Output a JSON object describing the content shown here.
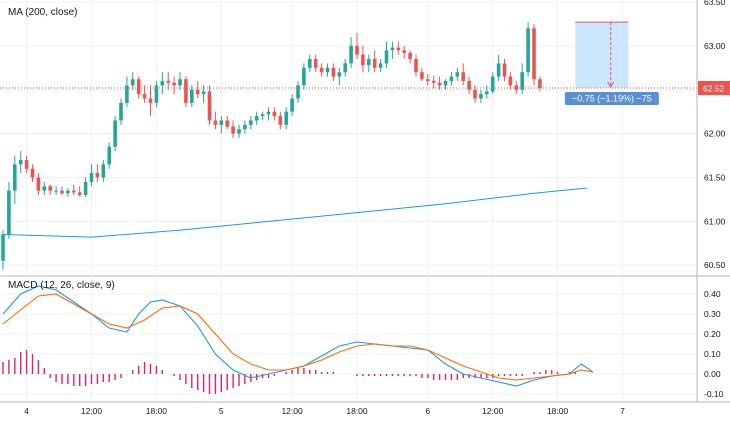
{
  "chart_data": [
    {
      "type": "candlestick",
      "title": "MA (200, close)",
      "ylim": [
        60.4,
        63.5
      ],
      "y_ticks": [
        "60.50",
        "61.00",
        "61.50",
        "62.00",
        "62.50",
        "63.00",
        "63.50"
      ],
      "y_tick_values": [
        60.5,
        61.0,
        61.5,
        62.0,
        62.5,
        63.0,
        63.5
      ],
      "x_ticks": [
        "4",
        "12:00",
        "18:00",
        "5",
        "12:00",
        "18:00",
        "6",
        "12:00",
        "18:00",
        "7"
      ],
      "x_tick_index": [
        4,
        15,
        26,
        37,
        49,
        60,
        72,
        83,
        94,
        105
      ],
      "last_price_label": "62.52",
      "last_price": 62.52,
      "colors": {
        "up": "#26a69a",
        "down": "#ef5350",
        "ma": "#2196f3",
        "last_price": "#ef5350"
      },
      "candles": [
        [
          60.55,
          60.9,
          60.45,
          60.85
        ],
        [
          60.85,
          61.45,
          60.8,
          61.35
        ],
        [
          61.35,
          61.75,
          61.2,
          61.65
        ],
        [
          61.65,
          61.8,
          61.55,
          61.7
        ],
        [
          61.7,
          61.75,
          61.55,
          61.6
        ],
        [
          61.6,
          61.65,
          61.45,
          61.5
        ],
        [
          61.5,
          61.55,
          61.3,
          61.35
        ],
        [
          61.35,
          61.45,
          61.3,
          61.4
        ],
        [
          61.4,
          61.42,
          61.3,
          61.35
        ],
        [
          61.35,
          61.4,
          61.3,
          61.35
        ],
        [
          61.35,
          61.4,
          61.3,
          61.32
        ],
        [
          61.32,
          61.38,
          61.28,
          61.35
        ],
        [
          61.35,
          61.42,
          61.3,
          61.33
        ],
        [
          61.33,
          61.4,
          61.28,
          61.3
        ],
        [
          61.3,
          61.5,
          61.28,
          61.45
        ],
        [
          61.45,
          61.65,
          61.4,
          61.55
        ],
        [
          61.55,
          61.65,
          61.45,
          61.5
        ],
        [
          61.5,
          61.7,
          61.45,
          61.65
        ],
        [
          61.65,
          61.9,
          61.6,
          61.85
        ],
        [
          61.85,
          62.2,
          61.8,
          62.15
        ],
        [
          62.15,
          62.4,
          62.1,
          62.35
        ],
        [
          62.35,
          62.65,
          62.3,
          62.55
        ],
        [
          62.55,
          62.7,
          62.5,
          62.62
        ],
        [
          62.62,
          62.65,
          62.4,
          62.45
        ],
        [
          62.45,
          62.55,
          62.35,
          62.4
        ],
        [
          62.4,
          62.55,
          62.2,
          62.35
        ],
        [
          62.35,
          62.6,
          62.3,
          62.55
        ],
        [
          62.55,
          62.7,
          62.45,
          62.6
        ],
        [
          62.6,
          62.7,
          62.5,
          62.58
        ],
        [
          62.58,
          62.65,
          62.45,
          62.55
        ],
        [
          62.55,
          62.7,
          62.5,
          62.62
        ],
        [
          62.62,
          62.65,
          62.3,
          62.35
        ],
        [
          62.35,
          62.55,
          62.3,
          62.5
        ],
        [
          62.5,
          62.6,
          62.4,
          62.45
        ],
        [
          62.45,
          62.55,
          62.35,
          62.48
        ],
        [
          62.48,
          62.55,
          62.1,
          62.15
        ],
        [
          62.15,
          62.25,
          62.05,
          62.1
        ],
        [
          62.1,
          62.2,
          62.0,
          62.15
        ],
        [
          62.15,
          62.2,
          62.05,
          62.08
        ],
        [
          62.08,
          62.15,
          61.95,
          62.0
        ],
        [
          62.0,
          62.1,
          61.95,
          62.05
        ],
        [
          62.05,
          62.15,
          62.0,
          62.1
        ],
        [
          62.1,
          62.2,
          62.05,
          62.15
        ],
        [
          62.15,
          62.25,
          62.1,
          62.2
        ],
        [
          62.2,
          62.25,
          62.15,
          62.22
        ],
        [
          62.22,
          62.3,
          62.15,
          62.25
        ],
        [
          62.25,
          62.3,
          62.15,
          62.2
        ],
        [
          62.2,
          62.25,
          62.05,
          62.1
        ],
        [
          62.1,
          62.3,
          62.05,
          62.25
        ],
        [
          62.25,
          62.45,
          62.2,
          62.4
        ],
        [
          62.4,
          62.6,
          62.35,
          62.55
        ],
        [
          62.55,
          62.8,
          62.5,
          62.75
        ],
        [
          62.75,
          62.9,
          62.7,
          62.85
        ],
        [
          62.85,
          62.9,
          62.7,
          62.75
        ],
        [
          62.75,
          62.8,
          62.65,
          62.7
        ],
        [
          62.7,
          62.8,
          62.65,
          62.75
        ],
        [
          62.75,
          62.8,
          62.6,
          62.65
        ],
        [
          62.65,
          62.75,
          62.55,
          62.7
        ],
        [
          62.7,
          62.85,
          62.65,
          62.8
        ],
        [
          62.8,
          63.1,
          62.75,
          63.0
        ],
        [
          63.0,
          63.15,
          62.85,
          62.9
        ],
        [
          62.9,
          63.0,
          62.7,
          62.78
        ],
        [
          62.78,
          62.9,
          62.7,
          62.85
        ],
        [
          62.85,
          62.95,
          62.7,
          62.75
        ],
        [
          62.75,
          62.85,
          62.7,
          62.8
        ],
        [
          62.8,
          63.05,
          62.75,
          62.95
        ],
        [
          62.95,
          63.05,
          62.85,
          62.98
        ],
        [
          62.98,
          63.05,
          62.9,
          62.95
        ],
        [
          62.95,
          63.0,
          62.85,
          62.92
        ],
        [
          62.92,
          62.95,
          62.8,
          62.85
        ],
        [
          62.85,
          62.9,
          62.65,
          62.7
        ],
        [
          62.7,
          62.75,
          62.6,
          62.62
        ],
        [
          62.62,
          62.68,
          62.55,
          62.6
        ],
        [
          62.6,
          62.66,
          62.52,
          62.58
        ],
        [
          62.58,
          62.65,
          62.5,
          62.55
        ],
        [
          62.55,
          62.62,
          62.5,
          62.6
        ],
        [
          62.6,
          62.7,
          62.55,
          62.65
        ],
        [
          62.65,
          62.75,
          62.6,
          62.7
        ],
        [
          62.7,
          62.8,
          62.55,
          62.6
        ],
        [
          62.6,
          62.65,
          62.45,
          62.5
        ],
        [
          62.5,
          62.55,
          62.35,
          62.4
        ],
        [
          62.4,
          62.5,
          62.35,
          62.45
        ],
        [
          62.45,
          62.55,
          62.4,
          62.48
        ],
        [
          62.48,
          62.7,
          62.45,
          62.65
        ],
        [
          62.65,
          62.9,
          62.6,
          62.8
        ],
        [
          62.8,
          62.85,
          62.6,
          62.65
        ],
        [
          62.65,
          62.7,
          62.5,
          62.55
        ],
        [
          62.55,
          62.6,
          62.45,
          62.5
        ],
        [
          62.5,
          62.8,
          62.45,
          62.7
        ],
        [
          62.7,
          63.27,
          62.65,
          63.2
        ],
        [
          63.2,
          63.25,
          62.55,
          62.62
        ],
        [
          62.62,
          62.65,
          62.48,
          62.52
        ]
      ],
      "ma_points": [
        [
          0,
          60.85
        ],
        [
          15,
          60.82
        ],
        [
          30,
          60.9
        ],
        [
          45,
          61.0
        ],
        [
          60,
          61.1
        ],
        [
          75,
          61.2
        ],
        [
          90,
          61.32
        ],
        [
          99,
          61.38
        ]
      ],
      "measure": {
        "label": "−0.75 (−1.19%) −75",
        "from_index": 97,
        "to_index": 106,
        "top": 63.27,
        "bottom": 62.52,
        "fill": "#bbdefb",
        "border": "#ef5350",
        "label_bg": "#5a8fd6"
      }
    },
    {
      "type": "line",
      "title": "MACD (12, 26, close, 9)",
      "ylim": [
        -0.13,
        0.48
      ],
      "y_ticks": [
        "0.40",
        "0.30",
        "0.20",
        "0.10",
        "0.00",
        "-0.10"
      ],
      "y_tick_values": [
        0.4,
        0.3,
        0.2,
        0.1,
        0.0,
        -0.1
      ],
      "colors": {
        "macd": "#2196f3",
        "signal": "#ff6d00",
        "histogram": "#e91e63"
      },
      "series": [
        {
          "name": "",
          "key": "macd",
          "points": [
            [
              0,
              0.3
            ],
            [
              3,
              0.4
            ],
            [
              6,
              0.44
            ],
            [
              9,
              0.42
            ],
            [
              12,
              0.36
            ],
            [
              15,
              0.3
            ],
            [
              18,
              0.23
            ],
            [
              21,
              0.21
            ],
            [
              23,
              0.3
            ],
            [
              25,
              0.36
            ],
            [
              27,
              0.37
            ],
            [
              30,
              0.34
            ],
            [
              33,
              0.24
            ],
            [
              36,
              0.1
            ],
            [
              39,
              0.02
            ],
            [
              42,
              -0.02
            ],
            [
              45,
              0.0
            ],
            [
              48,
              0.02
            ],
            [
              51,
              0.04
            ],
            [
              54,
              0.09
            ],
            [
              57,
              0.14
            ],
            [
              60,
              0.16
            ],
            [
              63,
              0.15
            ],
            [
              66,
              0.14
            ],
            [
              69,
              0.13
            ],
            [
              72,
              0.12
            ],
            [
              75,
              0.05
            ],
            [
              78,
              0.0
            ],
            [
              81,
              -0.02
            ],
            [
              84,
              -0.04
            ],
            [
              87,
              -0.06
            ],
            [
              90,
              -0.03
            ],
            [
              93,
              -0.01
            ],
            [
              96,
              0.0
            ],
            [
              98,
              0.05
            ],
            [
              100,
              0.01
            ]
          ]
        },
        {
          "name": "",
          "key": "signal",
          "points": [
            [
              0,
              0.25
            ],
            [
              3,
              0.32
            ],
            [
              6,
              0.39
            ],
            [
              9,
              0.4
            ],
            [
              12,
              0.35
            ],
            [
              15,
              0.3
            ],
            [
              18,
              0.25
            ],
            [
              21,
              0.23
            ],
            [
              24,
              0.27
            ],
            [
              27,
              0.33
            ],
            [
              30,
              0.34
            ],
            [
              33,
              0.3
            ],
            [
              36,
              0.2
            ],
            [
              39,
              0.1
            ],
            [
              42,
              0.05
            ],
            [
              45,
              0.02
            ],
            [
              48,
              0.02
            ],
            [
              51,
              0.04
            ],
            [
              54,
              0.07
            ],
            [
              57,
              0.11
            ],
            [
              60,
              0.14
            ],
            [
              63,
              0.15
            ],
            [
              66,
              0.14
            ],
            [
              69,
              0.14
            ],
            [
              72,
              0.12
            ],
            [
              75,
              0.08
            ],
            [
              78,
              0.04
            ],
            [
              81,
              0.01
            ],
            [
              84,
              -0.02
            ],
            [
              87,
              -0.03
            ],
            [
              90,
              -0.02
            ],
            [
              93,
              -0.01
            ],
            [
              96,
              0.0
            ],
            [
              98,
              0.02
            ],
            [
              100,
              0.01
            ]
          ]
        }
      ],
      "histogram": [
        0.06,
        0.07,
        0.08,
        0.11,
        0.12,
        0.1,
        0.07,
        0.03,
        -0.02,
        -0.04,
        -0.05,
        -0.05,
        -0.06,
        -0.06,
        -0.06,
        -0.05,
        -0.05,
        -0.04,
        -0.04,
        -0.03,
        -0.02,
        0.0,
        0.02,
        0.04,
        0.06,
        0.05,
        0.04,
        0.02,
        0.0,
        -0.01,
        -0.03,
        -0.05,
        -0.07,
        -0.08,
        -0.09,
        -0.1,
        -0.1,
        -0.09,
        -0.08,
        -0.07,
        -0.06,
        -0.05,
        -0.04,
        -0.03,
        -0.02,
        -0.02,
        -0.01,
        0.0,
        0.01,
        0.02,
        0.03,
        0.03,
        0.02,
        0.02,
        0.01,
        0.01,
        0.01,
        0.0,
        0.0,
        0.0,
        -0.01,
        -0.01,
        -0.01,
        -0.01,
        -0.01,
        -0.01,
        -0.01,
        -0.01,
        -0.01,
        -0.01,
        -0.01,
        -0.02,
        -0.02,
        -0.03,
        -0.03,
        -0.03,
        -0.03,
        -0.03,
        -0.02,
        -0.02,
        -0.02,
        -0.02,
        -0.02,
        -0.02,
        -0.01,
        -0.01,
        -0.01,
        -0.01,
        -0.01,
        0.0,
        0.01,
        0.01,
        0.02,
        0.02,
        0.01,
        0.0,
        0.01,
        0.01,
        0.0,
        0.0,
        0.0
      ]
    }
  ]
}
